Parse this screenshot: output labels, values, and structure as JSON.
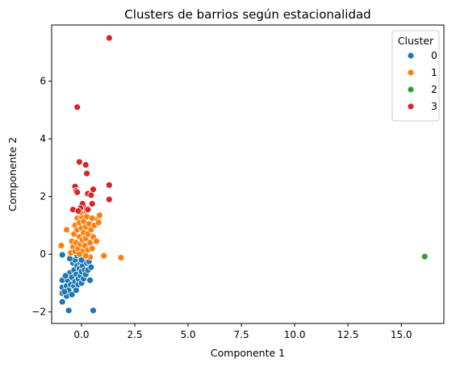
{
  "chart_data": {
    "type": "scatter",
    "title": "Clusters de barrios según estacionalidad",
    "xlabel": "Componente 1",
    "ylabel": "Componente 2",
    "xlim": [
      -1.4,
      17.0
    ],
    "ylim": [
      -2.4,
      7.95
    ],
    "xticks": [
      0.0,
      2.5,
      5.0,
      7.5,
      10.0,
      12.5,
      15.0
    ],
    "xtick_labels": [
      "0.0",
      "2.5",
      "5.0",
      "7.5",
      "10.0",
      "12.5",
      "15.0"
    ],
    "yticks": [
      -2,
      0,
      2,
      4,
      6
    ],
    "ytick_labels": [
      "−2",
      "0",
      "2",
      "4",
      "6"
    ],
    "grid": false,
    "legend": {
      "title": "Cluster",
      "placement": "top-right"
    },
    "series": [
      {
        "name": "0",
        "color": "#1f77b4",
        "points": [
          [
            -0.9,
            -0.02
          ],
          [
            -0.9,
            -0.9
          ],
          [
            -0.9,
            -1.15
          ],
          [
            -0.9,
            -1.35
          ],
          [
            -0.9,
            -1.65
          ],
          [
            -0.6,
            -1.95
          ],
          [
            0.55,
            -1.95
          ],
          [
            -0.7,
            -1.1
          ],
          [
            -0.7,
            -1.45
          ],
          [
            -0.65,
            -0.9
          ],
          [
            -0.6,
            -1.25
          ],
          [
            -0.55,
            -0.65
          ],
          [
            -0.5,
            -1.05
          ],
          [
            -0.45,
            -1.4
          ],
          [
            -0.45,
            -0.8
          ],
          [
            -0.4,
            -0.3
          ],
          [
            -0.35,
            -1.1
          ],
          [
            -0.35,
            -0.55
          ],
          [
            -0.3,
            -0.95
          ],
          [
            -0.3,
            -0.2
          ],
          [
            -0.25,
            -1.25
          ],
          [
            -0.25,
            -0.7
          ],
          [
            -0.2,
            -0.4
          ],
          [
            -0.15,
            -1.05
          ],
          [
            -0.15,
            -0.85
          ],
          [
            -0.1,
            -0.5
          ],
          [
            -0.05,
            -0.3
          ],
          [
            -0.05,
            -0.75
          ],
          [
            0.0,
            -1.0
          ],
          [
            0.0,
            -0.6
          ],
          [
            0.05,
            -0.4
          ],
          [
            0.1,
            -0.85
          ],
          [
            0.1,
            -0.15
          ],
          [
            0.15,
            -0.55
          ],
          [
            0.2,
            -0.7
          ],
          [
            0.25,
            -0.3
          ],
          [
            0.3,
            -0.55
          ],
          [
            0.35,
            -0.25
          ],
          [
            0.4,
            -0.9
          ],
          [
            0.45,
            -0.45
          ],
          [
            -0.2,
            -0.05
          ],
          [
            0.0,
            -0.2
          ],
          [
            -0.55,
            -0.15
          ],
          [
            -0.75,
            -0.75
          ],
          [
            -0.8,
            -1.3
          ]
        ]
      },
      {
        "name": "1",
        "color": "#ff7f0e",
        "points": [
          [
            -0.95,
            0.3
          ],
          [
            -0.7,
            0.85
          ],
          [
            -0.5,
            0.05
          ],
          [
            -0.45,
            0.45
          ],
          [
            -0.4,
            0.25
          ],
          [
            -0.35,
            0.7
          ],
          [
            -0.3,
            0.1
          ],
          [
            -0.3,
            1.0
          ],
          [
            -0.25,
            0.4
          ],
          [
            -0.2,
            0.85
          ],
          [
            -0.2,
            1.25
          ],
          [
            -0.15,
            0.2
          ],
          [
            -0.1,
            0.6
          ],
          [
            -0.1,
            1.1
          ],
          [
            -0.05,
            0.35
          ],
          [
            0.0,
            0.9
          ],
          [
            0.0,
            1.3
          ],
          [
            0.05,
            0.5
          ],
          [
            0.05,
            0.1
          ],
          [
            0.1,
            0.75
          ],
          [
            0.1,
            1.15
          ],
          [
            0.15,
            0.3
          ],
          [
            0.2,
            0.95
          ],
          [
            0.2,
            0.55
          ],
          [
            0.25,
            1.3
          ],
          [
            0.3,
            0.15
          ],
          [
            0.3,
            0.7
          ],
          [
            0.35,
            1.05
          ],
          [
            0.4,
            0.4
          ],
          [
            0.45,
            0.85
          ],
          [
            0.5,
            0.2
          ],
          [
            0.5,
            1.25
          ],
          [
            0.55,
            0.6
          ],
          [
            0.6,
            1.0
          ],
          [
            0.7,
            0.45
          ],
          [
            0.75,
            1.2
          ],
          [
            0.85,
            1.35
          ],
          [
            0.8,
            1.1
          ],
          [
            0.4,
            -0.1
          ],
          [
            0.2,
            -0.05
          ],
          [
            -0.1,
            0.0
          ],
          [
            1.05,
            -0.05
          ],
          [
            1.85,
            -0.12
          ],
          [
            0.15,
            1.5
          ],
          [
            -0.05,
            1.45
          ]
        ]
      },
      {
        "name": "2",
        "color": "#2ca02c",
        "points": [
          [
            16.1,
            -0.08
          ]
        ]
      },
      {
        "name": "3",
        "color": "#d62728",
        "points": [
          [
            1.3,
            7.5
          ],
          [
            -0.2,
            5.1
          ],
          [
            -0.1,
            3.2
          ],
          [
            0.2,
            3.1
          ],
          [
            0.25,
            2.8
          ],
          [
            1.3,
            2.4
          ],
          [
            1.3,
            1.9
          ],
          [
            -0.3,
            2.35
          ],
          [
            -0.25,
            2.2
          ],
          [
            -0.2,
            2.15
          ],
          [
            0.3,
            2.1
          ],
          [
            0.45,
            2.05
          ],
          [
            0.55,
            2.25
          ],
          [
            0.5,
            1.75
          ],
          [
            0.1,
            1.65
          ],
          [
            0.05,
            1.75
          ],
          [
            -0.05,
            1.6
          ],
          [
            -0.4,
            1.55
          ],
          [
            -0.15,
            1.5
          ],
          [
            0.3,
            1.55
          ]
        ]
      }
    ]
  }
}
